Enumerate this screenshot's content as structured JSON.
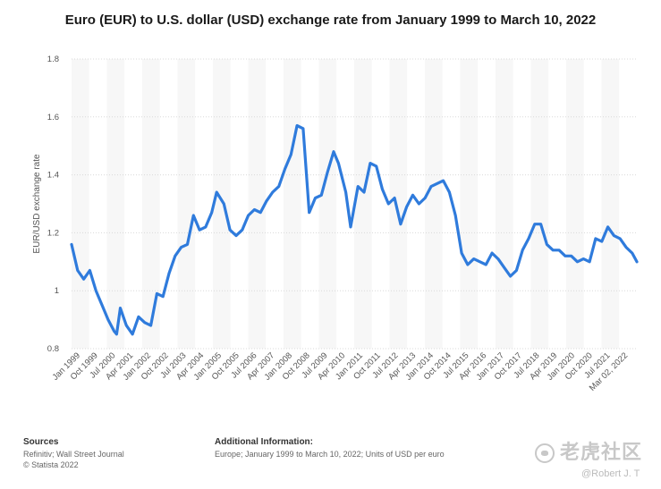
{
  "title": "Euro (EUR) to U.S. dollar (USD) exchange rate from January 1999 to March 10, 2022",
  "chart_data": {
    "type": "line",
    "title": "Euro (EUR) to U.S. dollar (USD) exchange rate from January 1999 to March 10, 2022",
    "xlabel": "",
    "ylabel": "EUR/USD exchange rate",
    "ylim": [
      0.8,
      1.8
    ],
    "yticks": [
      "0.8",
      "1",
      "1.2",
      "1.4",
      "1.6",
      "1.8"
    ],
    "grid": true,
    "line_color": "#2f7bdc",
    "x_ticks": [
      "Jan 1999",
      "Oct 1999",
      "Jul 2000",
      "Apr 2001",
      "Jan 2002",
      "Oct 2002",
      "Jul 2003",
      "Apr 2004",
      "Jan 2005",
      "Oct 2005",
      "Jul 2006",
      "Apr 2007",
      "Jan 2008",
      "Oct 2008",
      "Jul 2009",
      "Apr 2010",
      "Jan 2011",
      "Oct 2011",
      "Jul 2012",
      "Apr 2013",
      "Jan 2014",
      "Oct 2014",
      "Jul 2015",
      "Apr 2016",
      "Jan 2017",
      "Oct 2017",
      "Jul 2018",
      "Apr 2019",
      "Jan 2020",
      "Oct 2020",
      "Jul 2021",
      "Mar 02, 2022"
    ],
    "x": [
      1999.0,
      1999.25,
      1999.5,
      1999.75,
      2000.0,
      2000.25,
      2000.5,
      2000.75,
      2000.85,
      2001.0,
      2001.25,
      2001.5,
      2001.75,
      2002.0,
      2002.25,
      2002.5,
      2002.75,
      2003.0,
      2003.25,
      2003.5,
      2003.75,
      2004.0,
      2004.25,
      2004.5,
      2004.75,
      2004.95,
      2005.25,
      2005.5,
      2005.75,
      2006.0,
      2006.25,
      2006.5,
      2006.75,
      2007.0,
      2007.25,
      2007.5,
      2007.75,
      2008.0,
      2008.25,
      2008.5,
      2008.75,
      2009.0,
      2009.25,
      2009.5,
      2009.75,
      2009.95,
      2010.25,
      2010.45,
      2010.75,
      2011.0,
      2011.25,
      2011.5,
      2011.75,
      2012.0,
      2012.25,
      2012.5,
      2012.75,
      2013.0,
      2013.25,
      2013.5,
      2013.75,
      2014.0,
      2014.25,
      2014.5,
      2014.75,
      2015.0,
      2015.25,
      2015.5,
      2015.75,
      2016.0,
      2016.25,
      2016.5,
      2016.75,
      2017.0,
      2017.25,
      2017.5,
      2017.75,
      2018.0,
      2018.25,
      2018.5,
      2018.75,
      2019.0,
      2019.25,
      2019.5,
      2019.75,
      2020.0,
      2020.25,
      2020.5,
      2020.75,
      2021.0,
      2021.25,
      2021.5,
      2021.75,
      2022.0,
      2022.19
    ],
    "series": [
      {
        "values": [
          1.16,
          1.07,
          1.04,
          1.07,
          1.0,
          0.95,
          0.9,
          0.86,
          0.85,
          0.94,
          0.88,
          0.85,
          0.91,
          0.89,
          0.88,
          0.99,
          0.98,
          1.06,
          1.12,
          1.15,
          1.16,
          1.26,
          1.21,
          1.22,
          1.27,
          1.34,
          1.3,
          1.21,
          1.19,
          1.21,
          1.26,
          1.28,
          1.27,
          1.31,
          1.34,
          1.36,
          1.42,
          1.47,
          1.57,
          1.56,
          1.27,
          1.32,
          1.33,
          1.41,
          1.48,
          1.44,
          1.34,
          1.22,
          1.36,
          1.34,
          1.44,
          1.43,
          1.35,
          1.3,
          1.32,
          1.23,
          1.29,
          1.33,
          1.3,
          1.32,
          1.36,
          1.37,
          1.38,
          1.34,
          1.26,
          1.13,
          1.09,
          1.11,
          1.1,
          1.09,
          1.13,
          1.11,
          1.08,
          1.05,
          1.07,
          1.14,
          1.18,
          1.23,
          1.23,
          1.16,
          1.14,
          1.14,
          1.12,
          1.12,
          1.1,
          1.11,
          1.1,
          1.18,
          1.17,
          1.22,
          1.19,
          1.18,
          1.15,
          1.13,
          1.1
        ]
      }
    ]
  },
  "footer": {
    "sources_heading": "Sources",
    "sources_line1": "Refinitiv; Wall Street Journal",
    "sources_line2": "© Statista 2022",
    "additional_heading": "Additional Information:",
    "additional_line1": "Europe; January 1999 to March 10, 2022; Units of USD per euro"
  },
  "watermark": {
    "logo_text": "老虎社区",
    "handle": "@Robert J. T"
  }
}
